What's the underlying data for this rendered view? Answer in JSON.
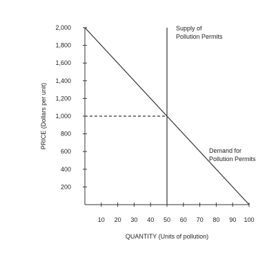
{
  "chart_data": {
    "type": "line",
    "title": "",
    "xlabel": "QUANTITY (Units of pollution)",
    "ylabel": "PRICE (Dollars per unit)",
    "xlim": [
      0,
      100
    ],
    "ylim": [
      0,
      2000
    ],
    "x_ticks": [
      10,
      20,
      30,
      40,
      50,
      60,
      70,
      80,
      90,
      100
    ],
    "y_ticks": [
      200,
      400,
      600,
      800,
      1000,
      1200,
      1400,
      1600,
      1800,
      2000
    ],
    "x_tick_labels": [
      "10",
      "20",
      "30",
      "40",
      "50",
      "60",
      "70",
      "80",
      "90",
      "100"
    ],
    "y_tick_labels": [
      "200",
      "400",
      "600",
      "800",
      "1,000",
      "1,200",
      "1,400",
      "1,600",
      "1,800",
      "2,000"
    ],
    "grid": false,
    "series": [
      {
        "name": "Demand for Pollution Permits",
        "label_lines": [
          "Demand for",
          "Pollution Permits"
        ],
        "style": "solid",
        "color": "#333333",
        "x": [
          0,
          100
        ],
        "y": [
          2000,
          0
        ]
      },
      {
        "name": "Supply of Pollution Permits",
        "label_lines": [
          "Supply of",
          "Pollution Permits"
        ],
        "style": "solid",
        "color": "#333333",
        "x": [
          50,
          50
        ],
        "y": [
          0,
          2000
        ]
      }
    ],
    "reference_lines": [
      {
        "style": "dashed",
        "color": "#333333",
        "x": [
          0,
          50
        ],
        "y": [
          1000,
          1000
        ]
      }
    ]
  }
}
